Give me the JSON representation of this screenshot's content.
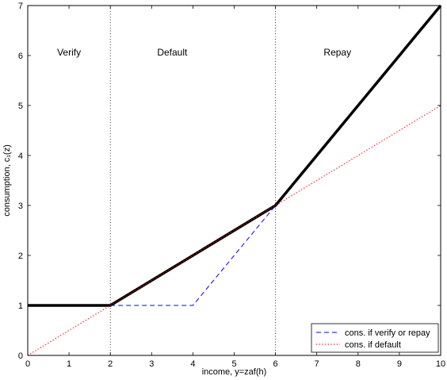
{
  "chart_data": {
    "type": "line",
    "xlabel": "income, y=zaf(h)",
    "ylabel": "consumption, c₁(z)",
    "xlim": [
      0,
      10
    ],
    "ylim": [
      0,
      7
    ],
    "xticks": [
      0,
      1,
      2,
      3,
      4,
      5,
      6,
      7,
      8,
      9,
      10
    ],
    "yticks": [
      0,
      1,
      2,
      3,
      4,
      5,
      6,
      7
    ],
    "grid": false,
    "legend_position": "bottom-right",
    "region_boundaries": [
      2,
      6
    ],
    "region_labels": [
      {
        "text": "Verify",
        "x": 1
      },
      {
        "text": "Default",
        "x": 3.5
      },
      {
        "text": "Repay",
        "x": 7.5
      }
    ],
    "series": [
      {
        "x": [
          0,
          2,
          6,
          10
        ],
        "y": [
          1,
          1,
          3,
          7
        ],
        "color": "#000000",
        "style": "solid-thick"
      },
      {
        "name": "cons. if verify or repay",
        "x": [
          2,
          4,
          6
        ],
        "y": [
          1,
          1,
          3
        ],
        "color": "#0000ff",
        "style": "dashed"
      },
      {
        "name": "cons. if default",
        "x": [
          0,
          10
        ],
        "y": [
          0,
          5
        ],
        "color": "#ff0000",
        "style": "dotted"
      }
    ]
  }
}
